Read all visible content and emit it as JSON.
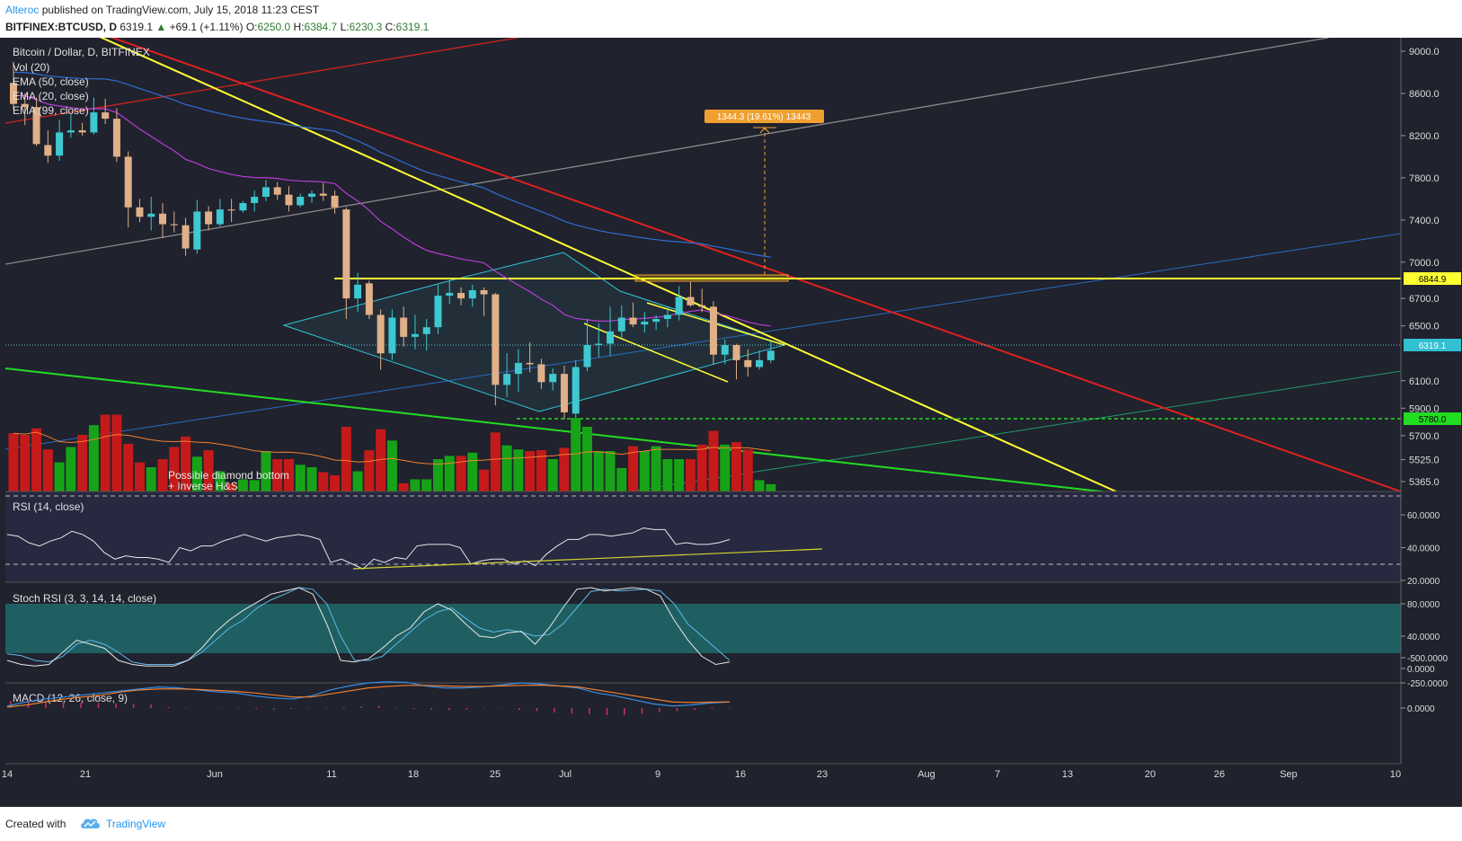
{
  "header": {
    "author": "Alteroc",
    "published": "published on TradingView.com, July 15, 2018 11:23 CEST",
    "symbol": "BITFINEX:BTCUSD, D",
    "last": "6319.1",
    "arrow": "▲",
    "change": "+69.1 (+1.11%)",
    "o_label": "O:",
    "o_value": "6250.0",
    "h_label": "H:",
    "h_value": "6384.7",
    "l_label": "L:",
    "l_value": "6230.3",
    "c_label": "C:",
    "c_value": "6319.1"
  },
  "legend": {
    "title": "Bitcoin / Dollar, D, BITFINEX",
    "vol": "Vol (20)",
    "ema50": "EMA (50, close)",
    "ema20": "EMA (20, close)",
    "ema99": "EMA (99, close)"
  },
  "annotations": {
    "measure": "1344.3 (19.61%) 13443",
    "pattern_line1": "Possible diamond bottom",
    "pattern_line2": "+ Inverse H&S"
  },
  "price_tags": {
    "resistance": "6844.9",
    "current": "6319.1",
    "support": "5780.0"
  },
  "panes": {
    "rsi": "RSI (14, close)",
    "stoch": "Stoch RSI (3, 3, 14, 14, close)",
    "macd": "MACD (12, 26, close, 9)"
  },
  "footer": {
    "created": "Created with",
    "brand": "TradingView"
  },
  "colors": {
    "background": "#20222d",
    "up": "#3ec8d0",
    "down": "#e0b088",
    "vol_up": "#17a317",
    "vol_down": "#c41a1a",
    "ema50": "#b83cd8",
    "ema20": "#f08030",
    "ema99": "#2e6fd6",
    "trend_yellow": "#ffff33",
    "trend_red": "#e02020",
    "trend_green": "#22dd22",
    "accent": "#2196f3"
  },
  "chart_data": [
    {
      "type": "candlestick",
      "title": "Bitcoin / Dollar, D, BITFINEX",
      "x_ticks": [
        "14",
        "21",
        "Jun",
        "11",
        "18",
        "25",
        "Jul",
        "9",
        "16",
        "23",
        "Aug",
        "7",
        "13",
        "20",
        "26",
        "Sep",
        "10"
      ],
      "y_ticks": [
        9000,
        8600,
        8200,
        7800,
        7400,
        7000,
        6700,
        6500,
        6100,
        5900,
        5700,
        5525,
        5365
      ],
      "ylim": [
        5300,
        9100
      ],
      "grid": false,
      "candles": [
        {
          "o": 8700,
          "h": 8900,
          "l": 8450,
          "c": 8500
        },
        {
          "o": 8500,
          "h": 8600,
          "l": 8300,
          "c": 8470
        },
        {
          "o": 8470,
          "h": 8560,
          "l": 8100,
          "c": 8120
        },
        {
          "o": 8110,
          "h": 8250,
          "l": 7940,
          "c": 8010
        },
        {
          "o": 8010,
          "h": 8350,
          "l": 7960,
          "c": 8230
        },
        {
          "o": 8230,
          "h": 8400,
          "l": 8180,
          "c": 8250
        },
        {
          "o": 8250,
          "h": 8320,
          "l": 8200,
          "c": 8230
        },
        {
          "o": 8230,
          "h": 8560,
          "l": 8210,
          "c": 8420
        },
        {
          "o": 8420,
          "h": 8550,
          "l": 8310,
          "c": 8360
        },
        {
          "o": 8360,
          "h": 8460,
          "l": 7950,
          "c": 8000
        },
        {
          "o": 8000,
          "h": 8050,
          "l": 7330,
          "c": 7520
        },
        {
          "o": 7520,
          "h": 7600,
          "l": 7380,
          "c": 7430
        },
        {
          "o": 7430,
          "h": 7620,
          "l": 7300,
          "c": 7460
        },
        {
          "o": 7460,
          "h": 7560,
          "l": 7230,
          "c": 7360
        },
        {
          "o": 7360,
          "h": 7480,
          "l": 7280,
          "c": 7350
        },
        {
          "o": 7350,
          "h": 7420,
          "l": 7060,
          "c": 7130
        },
        {
          "o": 7120,
          "h": 7590,
          "l": 7080,
          "c": 7480
        },
        {
          "o": 7480,
          "h": 7530,
          "l": 7300,
          "c": 7360
        },
        {
          "o": 7360,
          "h": 7600,
          "l": 7340,
          "c": 7500
        },
        {
          "o": 7500,
          "h": 7600,
          "l": 7380,
          "c": 7490
        },
        {
          "o": 7490,
          "h": 7580,
          "l": 7470,
          "c": 7560
        },
        {
          "o": 7560,
          "h": 7680,
          "l": 7480,
          "c": 7620
        },
        {
          "o": 7620,
          "h": 7780,
          "l": 7580,
          "c": 7710
        },
        {
          "o": 7710,
          "h": 7760,
          "l": 7590,
          "c": 7640
        },
        {
          "o": 7640,
          "h": 7720,
          "l": 7480,
          "c": 7540
        },
        {
          "o": 7540,
          "h": 7650,
          "l": 7520,
          "c": 7620
        },
        {
          "o": 7620,
          "h": 7680,
          "l": 7560,
          "c": 7650
        },
        {
          "o": 7650,
          "h": 7750,
          "l": 7580,
          "c": 7630
        },
        {
          "o": 7630,
          "h": 7680,
          "l": 7460,
          "c": 7520
        },
        {
          "o": 7500,
          "h": 7520,
          "l": 6550,
          "c": 6700
        },
        {
          "o": 6700,
          "h": 6900,
          "l": 6600,
          "c": 6800
        },
        {
          "o": 6810,
          "h": 6830,
          "l": 6550,
          "c": 6580
        },
        {
          "o": 6580,
          "h": 6620,
          "l": 6180,
          "c": 6300
        },
        {
          "o": 6300,
          "h": 6620,
          "l": 6250,
          "c": 6560
        },
        {
          "o": 6560,
          "h": 6640,
          "l": 6350,
          "c": 6420
        },
        {
          "o": 6420,
          "h": 6580,
          "l": 6330,
          "c": 6440
        },
        {
          "o": 6440,
          "h": 6550,
          "l": 6320,
          "c": 6490
        },
        {
          "o": 6490,
          "h": 6800,
          "l": 6440,
          "c": 6720
        },
        {
          "o": 6720,
          "h": 6830,
          "l": 6660,
          "c": 6740
        },
        {
          "o": 6740,
          "h": 6780,
          "l": 6650,
          "c": 6700
        },
        {
          "o": 6700,
          "h": 6800,
          "l": 6640,
          "c": 6760
        },
        {
          "o": 6760,
          "h": 6780,
          "l": 6570,
          "c": 6730
        },
        {
          "o": 6730,
          "h": 6740,
          "l": 5920,
          "c": 6070
        },
        {
          "o": 6070,
          "h": 6300,
          "l": 5980,
          "c": 6150
        },
        {
          "o": 6150,
          "h": 6330,
          "l": 6020,
          "c": 6230
        },
        {
          "o": 6230,
          "h": 6380,
          "l": 6160,
          "c": 6220
        },
        {
          "o": 6220,
          "h": 6260,
          "l": 6040,
          "c": 6090
        },
        {
          "o": 6090,
          "h": 6190,
          "l": 6030,
          "c": 6150
        },
        {
          "o": 6150,
          "h": 6210,
          "l": 5820,
          "c": 5870
        },
        {
          "o": 5860,
          "h": 6250,
          "l": 5830,
          "c": 6200
        },
        {
          "o": 6200,
          "h": 6550,
          "l": 6170,
          "c": 6360
        },
        {
          "o": 6360,
          "h": 6520,
          "l": 6270,
          "c": 6370
        },
        {
          "o": 6370,
          "h": 6640,
          "l": 6280,
          "c": 6460
        },
        {
          "o": 6460,
          "h": 6650,
          "l": 6410,
          "c": 6560
        },
        {
          "o": 6560,
          "h": 6670,
          "l": 6490,
          "c": 6510
        },
        {
          "o": 6510,
          "h": 6600,
          "l": 6450,
          "c": 6530
        },
        {
          "o": 6530,
          "h": 6580,
          "l": 6470,
          "c": 6550
        },
        {
          "o": 6550,
          "h": 6640,
          "l": 6490,
          "c": 6580
        },
        {
          "o": 6580,
          "h": 6790,
          "l": 6540,
          "c": 6710
        },
        {
          "o": 6710,
          "h": 6820,
          "l": 6640,
          "c": 6650
        },
        {
          "o": 6650,
          "h": 6770,
          "l": 6600,
          "c": 6640
        },
        {
          "o": 6640,
          "h": 6680,
          "l": 6220,
          "c": 6290
        },
        {
          "o": 6290,
          "h": 6400,
          "l": 6220,
          "c": 6360
        },
        {
          "o": 6360,
          "h": 6370,
          "l": 6110,
          "c": 6250
        },
        {
          "o": 6250,
          "h": 6330,
          "l": 6130,
          "c": 6200
        },
        {
          "o": 6200,
          "h": 6320,
          "l": 6180,
          "c": 6250
        },
        {
          "o": 6250,
          "h": 6385,
          "l": 6230,
          "c": 6319
        }
      ]
    },
    {
      "type": "bar",
      "title": "Vol (20)",
      "values": [
        72,
        70,
        78,
        52,
        36,
        55,
        70,
        82,
        95,
        95,
        59,
        36,
        30,
        40,
        55,
        68,
        43,
        51,
        25,
        10,
        15,
        14,
        50,
        40,
        40,
        33,
        30,
        24,
        20,
        80,
        25,
        51,
        77,
        63,
        10,
        15,
        15,
        40,
        44,
        44,
        48,
        27,
        73,
        57,
        52,
        50,
        51,
        40,
        54,
        91,
        80,
        50,
        50,
        29,
        56,
        50,
        56,
        40,
        40,
        40,
        58,
        75,
        58,
        61,
        52,
        14,
        9
      ]
    },
    {
      "type": "line",
      "title": "RSI (14, close)",
      "y_ticks": [
        60,
        40,
        20
      ],
      "ylim": [
        15,
        70
      ],
      "values": [
        48,
        47,
        43,
        41,
        44,
        46,
        50,
        48,
        44,
        37,
        33,
        35,
        34,
        34,
        33,
        31,
        40,
        38,
        41,
        41,
        44,
        46,
        48,
        46,
        44,
        46,
        47,
        48,
        47,
        45,
        31,
        33,
        30,
        27,
        33,
        31,
        34,
        33,
        41,
        42,
        42,
        42,
        40,
        30,
        32,
        33,
        33,
        30,
        32,
        29,
        36,
        41,
        45,
        45,
        48,
        48,
        47,
        48,
        49,
        52,
        51,
        51,
        42,
        43,
        42,
        42,
        43,
        45
      ]
    },
    {
      "type": "line",
      "title": "Stoch RSI (3, 3, 14, 14, close)",
      "y_ticks": [
        80,
        40,
        0
      ],
      "ylim": [
        -15,
        110
      ],
      "series": [
        {
          "values": [
            18,
            16,
            10,
            8,
            15,
            30,
            35,
            30,
            20,
            8,
            5,
            5,
            5,
            10,
            20,
            35,
            50,
            60,
            75,
            85,
            92,
            100,
            98,
            80,
            40,
            10,
            10,
            15,
            30,
            45,
            60,
            70,
            75,
            62,
            50,
            45,
            48,
            45,
            40,
            42,
            55,
            75,
            95,
            98,
            96,
            97,
            98,
            96,
            80,
            55,
            40,
            25,
            10
          ]
        },
        {
          "values": [
            10,
            5,
            3,
            5,
            20,
            35,
            30,
            25,
            10,
            5,
            3,
            3,
            3,
            10,
            25,
            45,
            60,
            72,
            82,
            92,
            96,
            100,
            92,
            55,
            10,
            8,
            12,
            25,
            40,
            50,
            70,
            80,
            72,
            55,
            40,
            38,
            44,
            46,
            30,
            50,
            75,
            98,
            100,
            96,
            98,
            100,
            98,
            90,
            60,
            35,
            15,
            5,
            8
          ]
        }
      ]
    },
    {
      "type": "line",
      "title": "MACD (12, 26, close, 9)",
      "y_ticks": [
        0,
        -250,
        -500
      ],
      "ylim": [
        -560,
        60
      ],
      "series": [
        {
          "values": [
            -20,
            -60,
            -90,
            -110,
            -130,
            -150,
            -170,
            -190,
            -210,
            -200,
            -180,
            -160,
            -150,
            -120,
            -100,
            -90,
            -120,
            -180,
            -220,
            -250,
            -260,
            -255,
            -220,
            -200,
            -200,
            -210,
            -230,
            -250,
            -240,
            -220,
            -200,
            -150,
            -120,
            -80,
            -40,
            -20,
            -30,
            -50,
            -60
          ]
        },
        {
          "values": [
            -10,
            -30,
            -60,
            -90,
            -110,
            -130,
            -160,
            -180,
            -190,
            -190,
            -185,
            -175,
            -165,
            -150,
            -130,
            -110,
            -110,
            -140,
            -170,
            -200,
            -215,
            -225,
            -225,
            -220,
            -215,
            -215,
            -220,
            -225,
            -228,
            -220,
            -210,
            -180,
            -150,
            -120,
            -90,
            -60,
            -55,
            -58,
            -60
          ]
        },
        {
          "type": "bar",
          "values": [
            -70,
            -80,
            -70,
            -60,
            -55,
            -50,
            -45,
            -40,
            -35,
            -10,
            -5,
            0,
            5,
            5,
            10,
            15,
            10,
            5,
            -5,
            -10,
            -15,
            -20,
            5,
            10,
            15,
            20,
            15,
            5,
            5,
            20,
            30,
            45,
            55,
            60,
            70,
            70,
            55,
            40,
            30,
            20,
            10,
            5
          ]
        }
      ]
    }
  ]
}
